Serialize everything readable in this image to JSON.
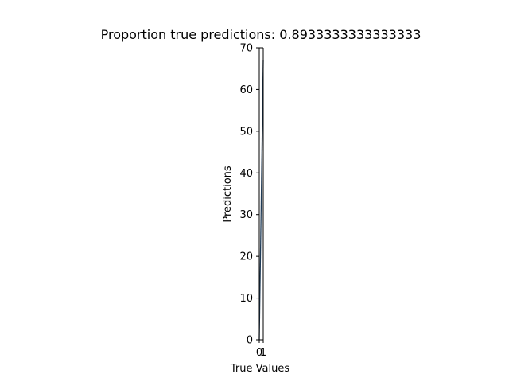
{
  "chart_data": {
    "type": "scatter",
    "title": "Proportion true predictions: 0.8933333333333333",
    "xlabel": "True Values",
    "ylabel": "Predictions",
    "x_ticks": [
      "0",
      "1"
    ],
    "y_ticks": [
      "0",
      "10",
      "20",
      "30",
      "40",
      "50",
      "60",
      "70"
    ],
    "xlim": [
      0,
      1
    ],
    "ylim": [
      0,
      70
    ],
    "grid": false,
    "series": [
      {
        "x": [
          0,
          1
        ],
        "y": [
          0,
          67
        ]
      }
    ],
    "colors": {
      "line": "#1f3b57",
      "axis": "#000000"
    }
  }
}
